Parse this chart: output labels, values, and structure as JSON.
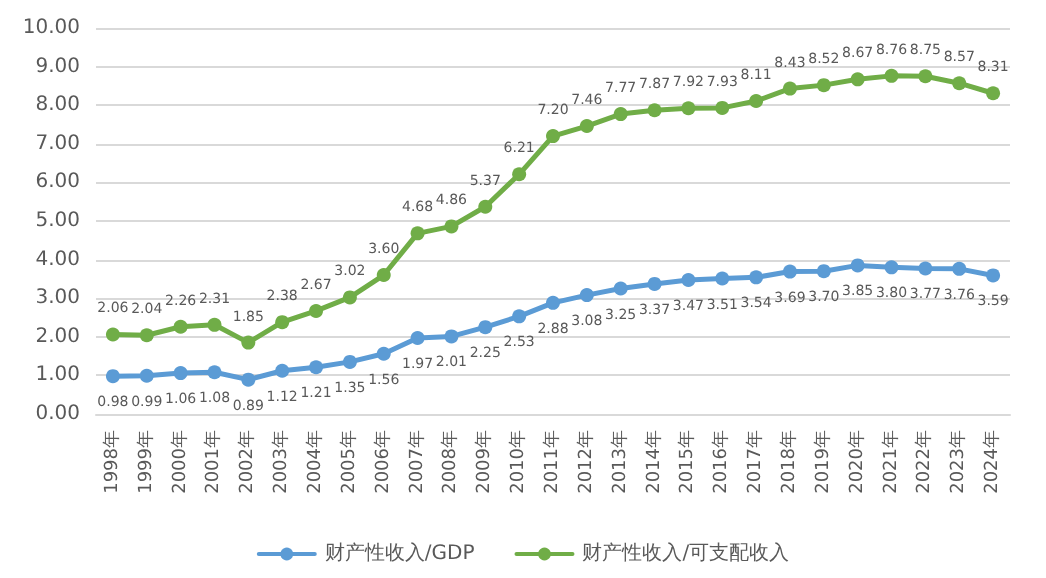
{
  "chart_data": {
    "type": "line",
    "categories": [
      "1998年",
      "1999年",
      "2000年",
      "2001年",
      "2002年",
      "2003年",
      "2004年",
      "2005年",
      "2006年",
      "2007年",
      "2008年",
      "2009年",
      "2010年",
      "2011年",
      "2012年",
      "2013年",
      "2014年",
      "2015年",
      "2016年",
      "2017年",
      "2018年",
      "2019年",
      "2020年",
      "2021年",
      "2022年",
      "2023年",
      "2024年"
    ],
    "series": [
      {
        "name": "财产性收入/GDP",
        "color": "#5b9bd5",
        "values": [
          0.98,
          0.99,
          1.06,
          1.08,
          0.89,
          1.12,
          1.21,
          1.35,
          1.56,
          1.97,
          2.01,
          2.25,
          2.53,
          2.88,
          3.08,
          3.25,
          3.37,
          3.47,
          3.51,
          3.54,
          3.69,
          3.7,
          3.85,
          3.8,
          3.77,
          3.76,
          3.59
        ],
        "value_labels": [
          "0.98",
          "0.99",
          "1.06",
          "1.08",
          "0.89",
          "1.12",
          "1.21",
          "1.35",
          "1.56",
          "1.97",
          "2.01",
          "2.25",
          "2.53",
          "2.88",
          "3.08",
          "3.25",
          "3.37",
          "3.47",
          "3.51",
          "3.54",
          "3.69",
          "3.70",
          "3.85",
          "3.80",
          "3.77",
          "3.76",
          "3.59"
        ]
      },
      {
        "name": "财产性收入/可支配收入",
        "color": "#70ad47",
        "values": [
          2.06,
          2.04,
          2.26,
          2.31,
          1.85,
          2.38,
          2.67,
          3.02,
          3.6,
          4.68,
          4.86,
          5.37,
          6.21,
          7.2,
          7.46,
          7.77,
          7.87,
          7.92,
          7.93,
          8.11,
          8.43,
          8.52,
          8.67,
          8.76,
          8.75,
          8.57,
          8.31
        ],
        "value_labels": [
          "2.06",
          "2.04",
          "2.26",
          "2.31",
          "1.85",
          "2.38",
          "2.67",
          "3.02",
          "3.60",
          "4.68",
          "4.86",
          "5.37",
          "6.21",
          "7.20",
          "7.46",
          "7.77",
          "7.87",
          "7.92",
          "7.93",
          "8.11",
          "8.43",
          "8.52",
          "8.67",
          "8.76",
          "8.75",
          "8.57",
          "8.31"
        ]
      }
    ],
    "ylim": [
      0,
      10
    ],
    "yticks": [
      {
        "value": 0,
        "label": "0.00"
      },
      {
        "value": 1,
        "label": "1.00"
      },
      {
        "value": 2,
        "label": "2.00"
      },
      {
        "value": 3,
        "label": "3.00"
      },
      {
        "value": 4,
        "label": "4.00"
      },
      {
        "value": 5,
        "label": "5.00"
      },
      {
        "value": 6,
        "label": "6.00"
      },
      {
        "value": 7,
        "label": "7.00"
      },
      {
        "value": 8,
        "label": "8.00"
      },
      {
        "value": 9,
        "label": "9.00"
      },
      {
        "value": 10,
        "label": "10.00"
      }
    ],
    "grid": "y",
    "legend": "bottom",
    "marker": "circle",
    "line_style": "solid"
  }
}
